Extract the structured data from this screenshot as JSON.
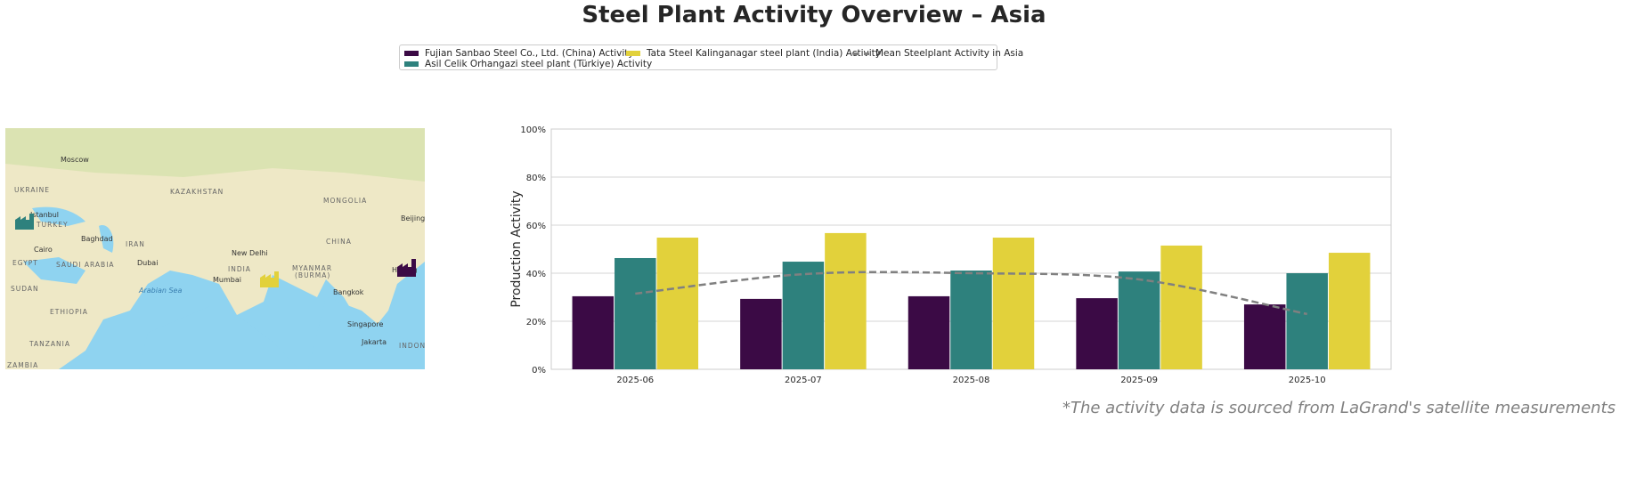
{
  "title": "Steel Plant Activity Overview – Asia",
  "footnote": "*The activity data is sourced from LaGrand's satellite measurements",
  "legend": {
    "items": [
      {
        "label": "Fujian Sanbao Steel Co., Ltd. (China) Activity",
        "color": "#3b0a45"
      },
      {
        "label": "Asil Celik Orhangazi steel plant (Türkiye) Activity",
        "color": "#2e817d"
      },
      {
        "label": "Tata Steel Kalinganagar steel plant (India) Activity",
        "color": "#e2d13b"
      },
      {
        "label": "Mean Steelplant Activity in Asia",
        "color": "#808080"
      }
    ]
  },
  "map": {
    "labels": [
      "Moscow",
      "UKRAINE",
      "KAZAKHSTAN",
      "MONGOLIA",
      "Istanbul",
      "TURKEY",
      "Baghdad",
      "IRAN",
      "CHINA",
      "Beijing",
      "Cairo",
      "EGYPT",
      "SAUDI ARABIA",
      "Dubai",
      "New Delhi",
      "INDIA",
      "MYANMAR",
      "(BURMA)",
      "Mumbai",
      "Arabian Sea",
      "Bangkok",
      "SUDAN",
      "ETHIOPIA",
      "Singapore",
      "TANZANIA",
      "Jakarta",
      "INDON",
      "ZAMBIA",
      "H Kong"
    ],
    "markers": [
      {
        "plant": "Asil Celik Orhangazi",
        "icon": "factory-icon",
        "color": "#2e817d"
      },
      {
        "plant": "Tata Steel Kalinganagar",
        "icon": "factory-icon",
        "color": "#e2d13b"
      },
      {
        "plant": "Fujian Sanbao",
        "icon": "factory-icon",
        "color": "#3b0a45"
      }
    ]
  },
  "chart_data": {
    "type": "bar",
    "title": "",
    "xlabel": "",
    "ylabel": "Production Activity",
    "ylim": [
      0,
      100
    ],
    "yticks": [
      "0%",
      "20%",
      "40%",
      "60%",
      "80%",
      "100%"
    ],
    "grid": true,
    "categories": [
      "2025-06",
      "2025-07",
      "2025-08",
      "2025-09",
      "2025-10"
    ],
    "series": [
      {
        "name": "Fujian Sanbao Steel Co., Ltd. (China) Activity",
        "color": "#3b0a45",
        "values": [
          30.4,
          29.3,
          30.4,
          29.6,
          27.0
        ]
      },
      {
        "name": "Asil Celik Orhangazi steel plant (Türkiye) Activity",
        "color": "#2e817d",
        "values": [
          46.3,
          44.8,
          41.1,
          40.7,
          40.0
        ]
      },
      {
        "name": "Tata Steel Kalinganagar steel plant (India) Activity",
        "color": "#e2d13b",
        "values": [
          54.8,
          56.7,
          54.8,
          51.5,
          48.5
        ]
      }
    ],
    "mean_line": {
      "name": "Mean Steelplant Activity in Asia",
      "color": "#808080",
      "values": [
        31.5,
        39.6,
        40.0,
        37.4,
        23.0
      ]
    }
  }
}
